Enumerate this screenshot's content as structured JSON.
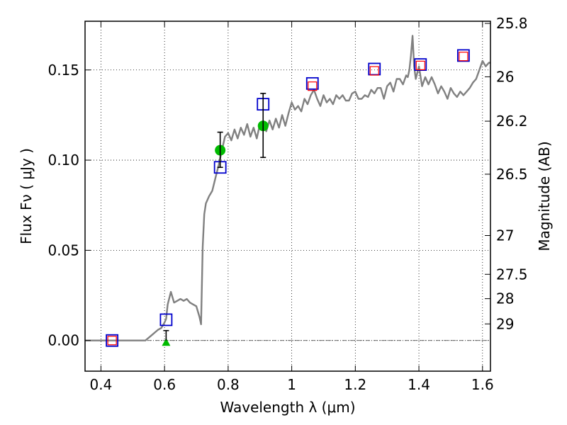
{
  "chart_data": {
    "type": "scatter",
    "xlabel": "Wavelength  λ (μm)",
    "ylabel": "Flux  Fν  ( μJy )",
    "y2label": "Magnitude (AB)",
    "xlim": [
      0.35,
      1.625
    ],
    "ylim": [
      -0.017,
      0.177
    ],
    "grid": true,
    "x_ticks": [
      0.4,
      0.6,
      0.8,
      1.0,
      1.2,
      1.4,
      1.6
    ],
    "x_tick_labels": [
      "0.4",
      "0.6",
      "0.8",
      "1",
      "1.2",
      "1.4",
      "1.6"
    ],
    "y_ticks": [
      0.0,
      0.05,
      0.1,
      0.15
    ],
    "y_tick_labels": [
      "0.00",
      "0.05",
      "0.10",
      "0.15"
    ],
    "magnitude_ticks": [
      {
        "label": "25.8",
        "flux": 0.1758
      },
      {
        "label": "26",
        "flux": 0.1462
      },
      {
        "label": "26.2",
        "flux": 0.1216
      },
      {
        "label": "26.5",
        "flux": 0.0922
      },
      {
        "label": "27",
        "flux": 0.0582
      },
      {
        "label": "27.5",
        "flux": 0.0367
      },
      {
        "label": "28",
        "flux": 0.0232
      },
      {
        "label": "29",
        "flux": 0.0092
      }
    ],
    "colors": {
      "model": "#808080",
      "model_photometry": "#0000cc",
      "observed_photometry": "#ff0000",
      "detections": "#00bb00",
      "errorbars": "#000000",
      "zero_line": "#555555"
    },
    "series": [
      {
        "type": "line",
        "x": [
          0.35,
          0.45,
          0.5,
          0.54,
          0.56,
          0.58,
          0.59,
          0.6,
          0.605,
          0.61,
          0.62,
          0.63,
          0.64,
          0.65,
          0.66,
          0.67,
          0.68,
          0.69,
          0.7,
          0.71,
          0.715,
          0.72,
          0.725,
          0.73,
          0.74,
          0.75,
          0.76,
          0.77,
          0.78,
          0.79,
          0.8,
          0.81,
          0.82,
          0.83,
          0.84,
          0.85,
          0.86,
          0.87,
          0.88,
          0.89,
          0.9,
          0.91,
          0.92,
          0.93,
          0.94,
          0.95,
          0.96,
          0.97,
          0.98,
          0.99,
          1.0,
          1.01,
          1.02,
          1.03,
          1.04,
          1.05,
          1.06,
          1.07,
          1.08,
          1.09,
          1.1,
          1.11,
          1.12,
          1.13,
          1.14,
          1.15,
          1.16,
          1.17,
          1.18,
          1.19,
          1.2,
          1.21,
          1.22,
          1.23,
          1.24,
          1.25,
          1.26,
          1.27,
          1.28,
          1.29,
          1.3,
          1.31,
          1.32,
          1.33,
          1.34,
          1.35,
          1.36,
          1.365,
          1.37,
          1.375,
          1.38,
          1.385,
          1.39,
          1.4,
          1.41,
          1.42,
          1.43,
          1.44,
          1.45,
          1.46,
          1.47,
          1.48,
          1.49,
          1.5,
          1.51,
          1.52,
          1.53,
          1.54,
          1.55,
          1.56,
          1.57,
          1.58,
          1.59,
          1.6,
          1.61,
          1.62,
          1.625
        ],
        "y": [
          0.0,
          0.0,
          0.0,
          0.0,
          0.003,
          0.006,
          0.007,
          0.01,
          0.012,
          0.02,
          0.027,
          0.021,
          0.022,
          0.023,
          0.022,
          0.023,
          0.021,
          0.02,
          0.019,
          0.013,
          0.009,
          0.052,
          0.07,
          0.076,
          0.08,
          0.083,
          0.09,
          0.097,
          0.105,
          0.113,
          0.115,
          0.111,
          0.117,
          0.112,
          0.118,
          0.114,
          0.12,
          0.113,
          0.118,
          0.112,
          0.12,
          0.121,
          0.116,
          0.122,
          0.117,
          0.123,
          0.118,
          0.125,
          0.119,
          0.126,
          0.132,
          0.128,
          0.13,
          0.127,
          0.134,
          0.131,
          0.136,
          0.139,
          0.134,
          0.13,
          0.136,
          0.132,
          0.134,
          0.131,
          0.136,
          0.134,
          0.136,
          0.133,
          0.133,
          0.137,
          0.138,
          0.134,
          0.134,
          0.136,
          0.135,
          0.139,
          0.137,
          0.14,
          0.14,
          0.134,
          0.141,
          0.143,
          0.138,
          0.145,
          0.145,
          0.142,
          0.147,
          0.146,
          0.15,
          0.158,
          0.169,
          0.152,
          0.145,
          0.152,
          0.141,
          0.146,
          0.142,
          0.146,
          0.142,
          0.137,
          0.141,
          0.138,
          0.134,
          0.14,
          0.137,
          0.135,
          0.138,
          0.136,
          0.138,
          0.14,
          0.143,
          0.145,
          0.15,
          0.155,
          0.152,
          0.154,
          0.154
        ]
      },
      {
        "type": "open-square",
        "x": [
          0.435,
          0.605,
          0.775,
          0.91,
          1.065,
          1.26,
          1.405,
          1.54
        ],
        "y": [
          0.0,
          0.0115,
          0.096,
          0.131,
          0.1425,
          0.1505,
          0.153,
          0.158
        ]
      },
      {
        "type": "open-square",
        "x": [
          0.435,
          1.065,
          1.26,
          1.405,
          1.54
        ],
        "y": [
          0.0,
          0.141,
          0.1495,
          0.1525,
          0.1575
        ]
      },
      {
        "type": "filled-circle",
        "x": [
          0.775,
          0.91
        ],
        "y": [
          0.1055,
          0.119
        ]
      },
      {
        "type": "triangle",
        "x": [
          0.605
        ],
        "y": [
          -0.001
        ]
      },
      {
        "type": "errorbar",
        "x": [
          0.605,
          0.775,
          0.91
        ],
        "y": [
          0.0,
          0.1055,
          0.119
        ],
        "low": [
          0.0,
          0.096,
          0.1015
        ],
        "high": [
          0.0055,
          0.1155,
          0.137
        ]
      }
    ]
  }
}
